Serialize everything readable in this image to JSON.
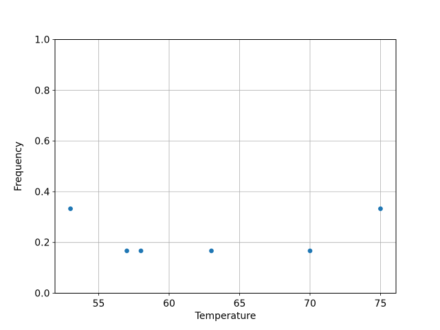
{
  "chart_data": {
    "type": "scatter",
    "xlabel": "Temperature",
    "ylabel": "Frequency",
    "x": [
      53,
      57,
      58,
      63,
      70,
      75
    ],
    "y": [
      0.333,
      0.167,
      0.167,
      0.167,
      0.167,
      0.333
    ],
    "xticks": {
      "values": [
        55,
        60,
        65,
        70,
        75
      ],
      "labels": [
        "55",
        "60",
        "65",
        "70",
        "75"
      ]
    },
    "yticks": {
      "values": [
        0.0,
        0.2,
        0.4,
        0.6,
        0.8,
        1.0
      ],
      "labels": [
        "0.0",
        "0.2",
        "0.4",
        "0.6",
        "0.8",
        "1.0"
      ]
    },
    "xlim": [
      51.9,
      76.1
    ],
    "ylim": [
      0.0,
      1.0
    ],
    "grid": true,
    "legend": false,
    "colors": {
      "marker": "#1f77b4",
      "grid": "#b0b0b0",
      "spine": "#000000",
      "background": "#ffffff"
    }
  }
}
